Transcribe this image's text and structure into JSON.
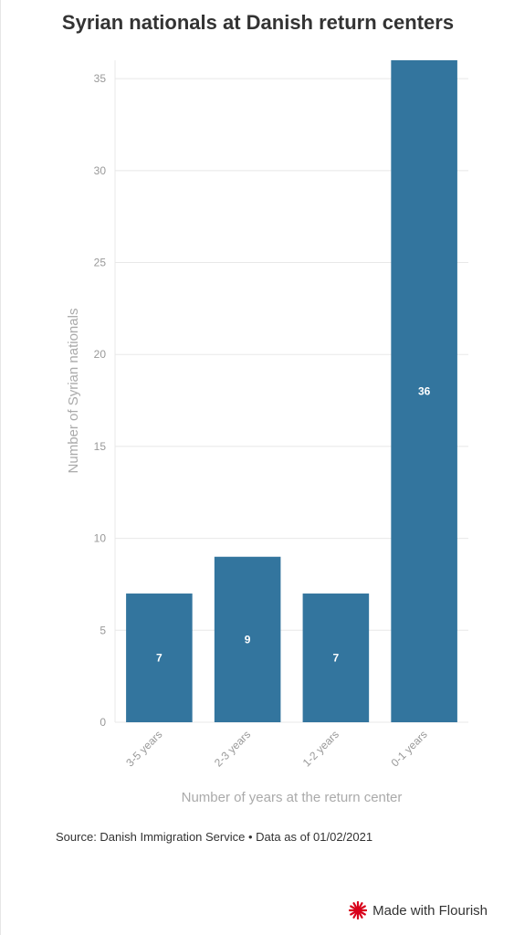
{
  "title": "Syrian nationals at Danish return centers",
  "source": {
    "label": "Source: Danish Immigration Service",
    "separator": "•",
    "note": "Data as of 01/02/2021"
  },
  "credit": {
    "label": "Made with Flourish",
    "icon": "flourish-logo-icon"
  },
  "colors": {
    "bar": "#33759e",
    "grid": "#e8e8e8",
    "tick": "#999999",
    "axis_label": "#aaaaaa",
    "data_label": "#ffffff",
    "logo": "#d9001b"
  },
  "chart_data": {
    "type": "bar",
    "title": "Syrian nationals at Danish return centers",
    "xlabel": "Number of years at the return center",
    "ylabel": "Number of Syrian nationals",
    "categories": [
      "3-5 years",
      "2-3 years",
      "1-2 years",
      "0-1 years"
    ],
    "values": [
      7,
      9,
      7,
      36
    ],
    "data_labels": [
      "7",
      "9",
      "7",
      "36"
    ],
    "ylim": [
      0,
      36
    ],
    "yticks": [
      0,
      5,
      10,
      15,
      20,
      25,
      30,
      35
    ],
    "grid": true,
    "legend": "none"
  }
}
